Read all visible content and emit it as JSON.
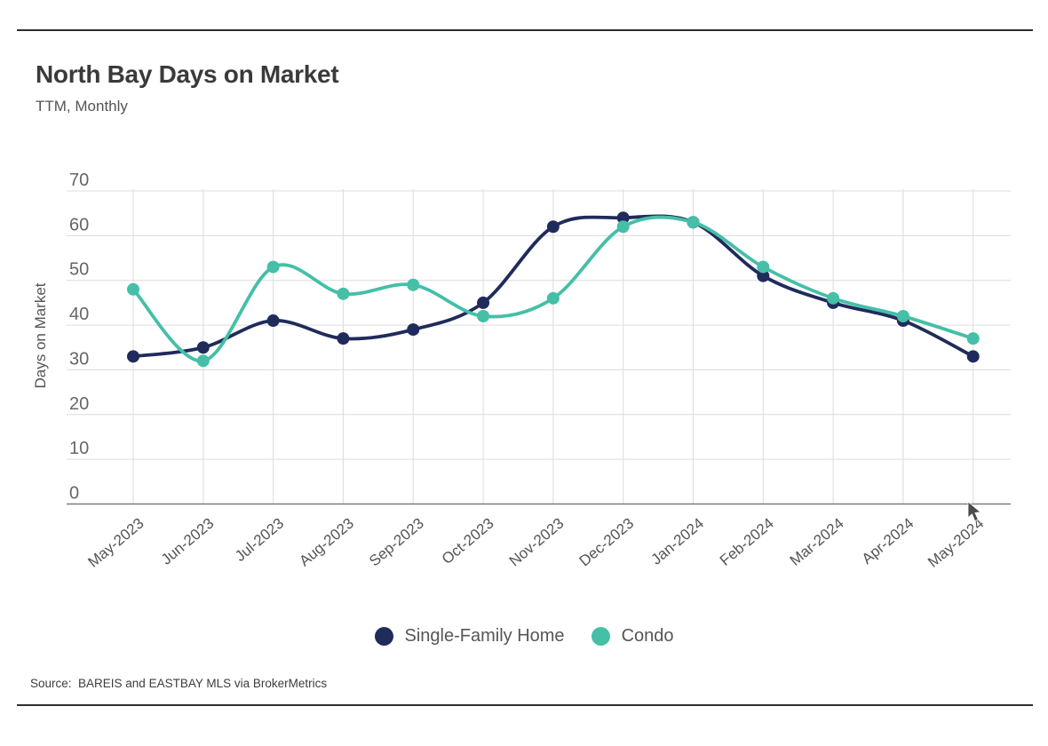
{
  "header": {
    "title": "North Bay Days on Market",
    "subtitle": "TTM, Monthly"
  },
  "source": "Source:  BAREIS and EASTBAY MLS via BrokerMetrics",
  "colors": {
    "single_family": "#1F2B5B",
    "condo": "#45BFA7",
    "gridline": "#dcdcdc",
    "baseline": "#7d7d7d",
    "tick_label": "#666666",
    "axis_title": "#555555",
    "rule": "#2d2d2d"
  },
  "chart_data": {
    "type": "line",
    "title": "North Bay Days on Market",
    "subtitle": "TTM, Monthly",
    "xlabel": "",
    "ylabel": "Days on Market",
    "ylim": [
      0,
      70
    ],
    "ytick_step": 10,
    "grid": true,
    "legend_position": "bottom",
    "categories": [
      "May-2023",
      "Jun-2023",
      "Jul-2023",
      "Aug-2023",
      "Sep-2023",
      "Oct-2023",
      "Nov-2023",
      "Dec-2023",
      "Jan-2024",
      "Feb-2024",
      "Mar-2024",
      "Apr-2024",
      "May-2024"
    ],
    "series": [
      {
        "name": "Single-Family Home",
        "color": "#1F2B5B",
        "values": [
          33,
          35,
          41,
          37,
          39,
          45,
          62,
          64,
          63,
          51,
          45,
          41,
          33
        ]
      },
      {
        "name": "Condo",
        "color": "#45BFA7",
        "values": [
          48,
          32,
          53,
          47,
          49,
          42,
          46,
          62,
          63,
          53,
          46,
          42,
          37
        ]
      }
    ]
  },
  "legend": {
    "items": [
      {
        "label": "Single-Family Home",
        "color": "#1F2B5B"
      },
      {
        "label": "Condo",
        "color": "#45BFA7"
      }
    ]
  }
}
